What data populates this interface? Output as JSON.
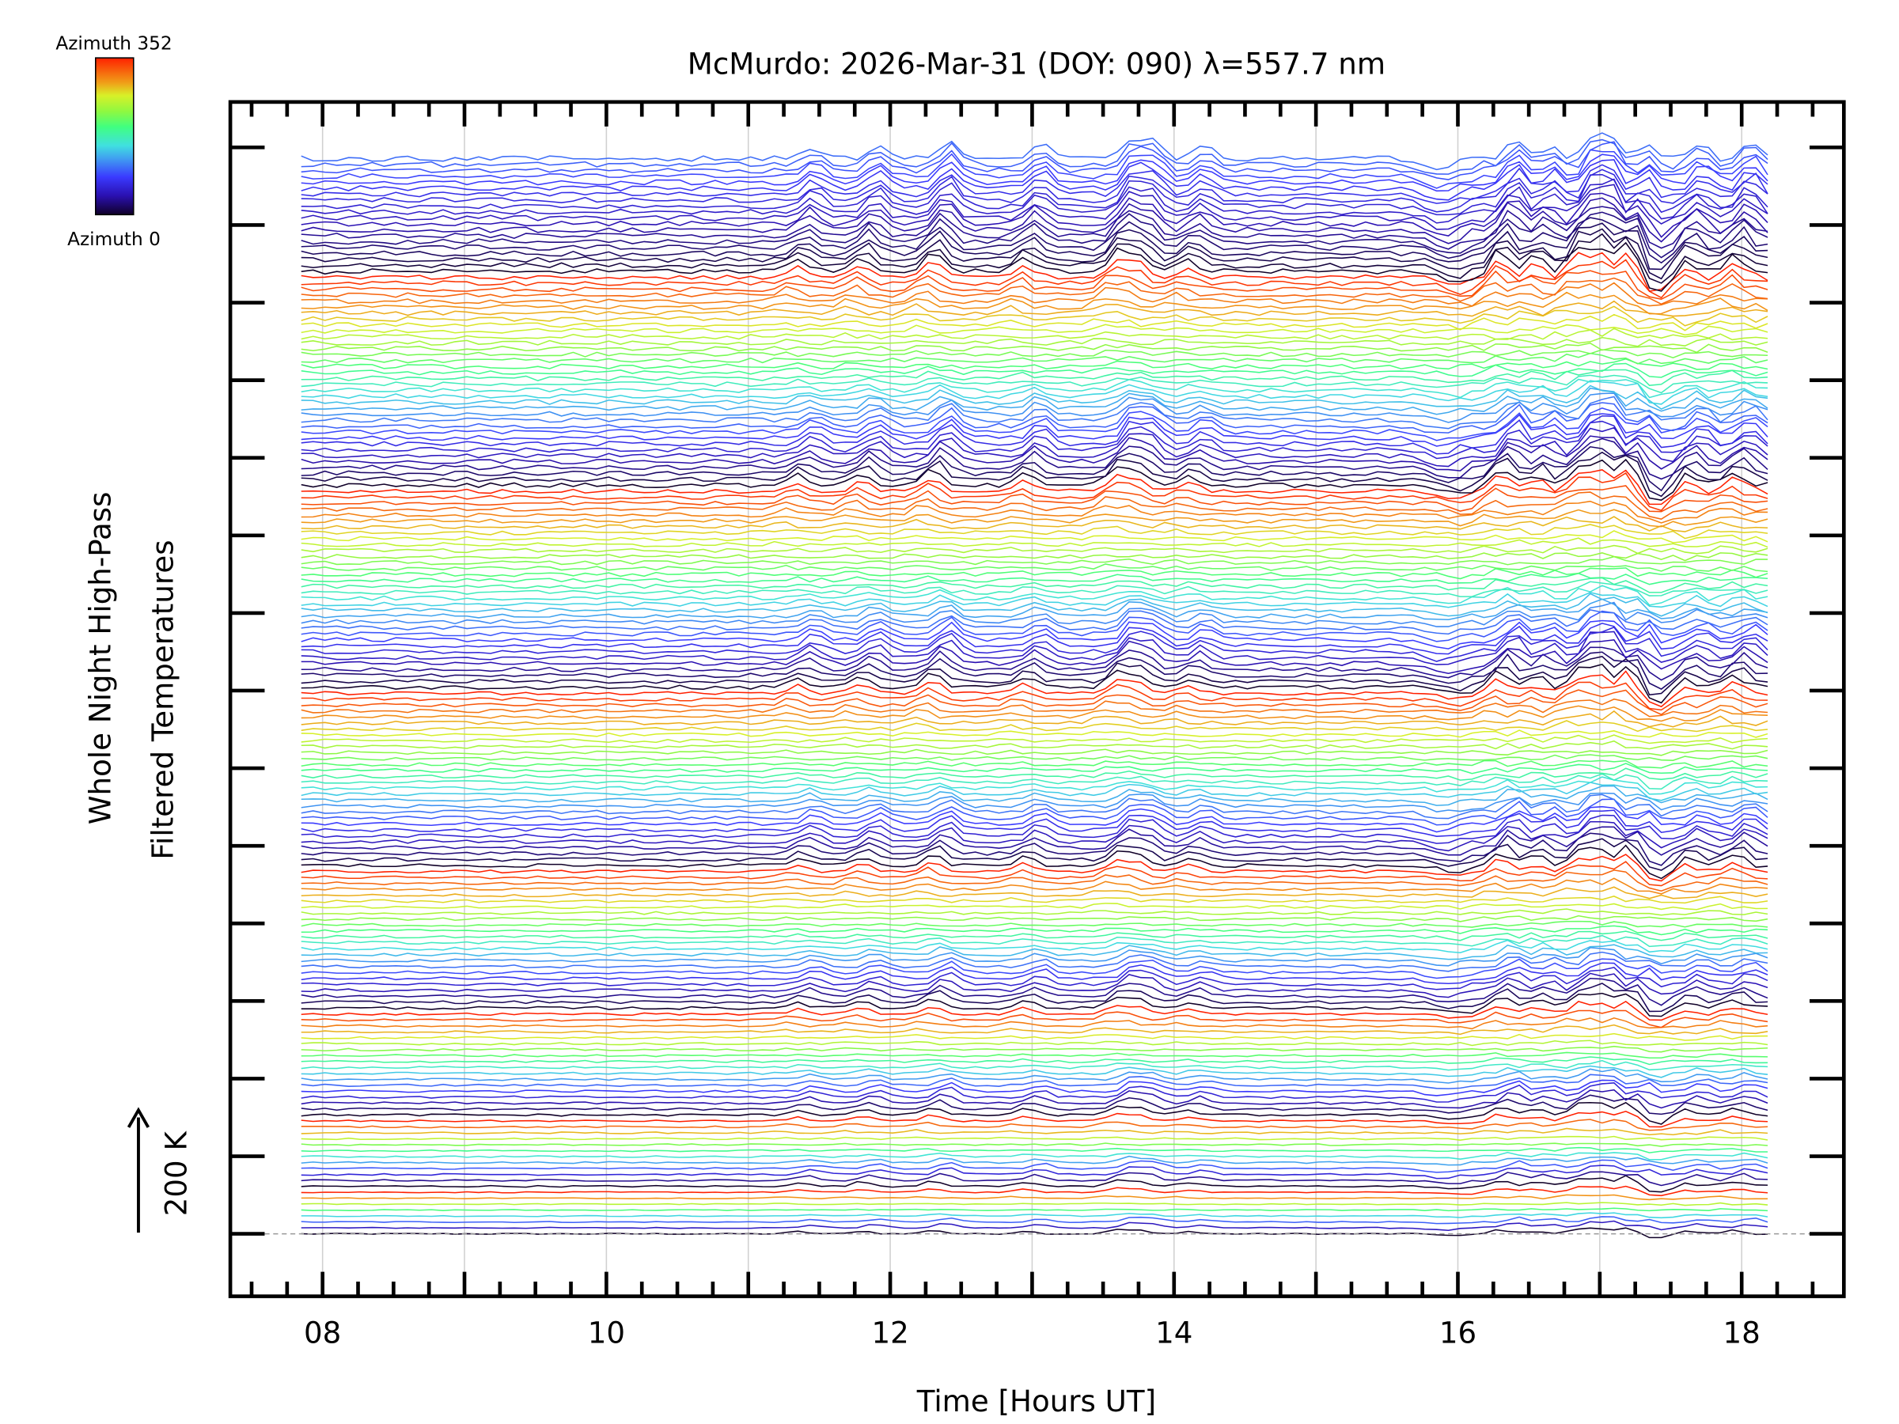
{
  "chart_data": {
    "type": "line",
    "title": "McMurdo: 2026-Mar-31 (DOY: 090) λ=557.7 nm",
    "xlabel": "Time [Hours UT]",
    "ylabel_line1": "Whole Night High-Pass",
    "ylabel_line2": "Filtered Temperatures",
    "scale_bar_label": "200 K",
    "colorbar": {
      "top_label": "Azimuth 352",
      "bottom_label": "Azimuth 0",
      "min": 0,
      "max": 352
    },
    "xlim": [
      7.35,
      18.72
    ],
    "xticks": [
      {
        "value": 8,
        "label": "08"
      },
      {
        "value": 10,
        "label": "10"
      },
      {
        "value": 12,
        "label": "12"
      },
      {
        "value": 14,
        "label": "14"
      },
      {
        "value": 16,
        "label": "16"
      },
      {
        "value": 18,
        "label": "18"
      }
    ],
    "data_time_range": [
      7.85,
      18.25
    ],
    "grid": "vertical lines each hour",
    "stacking": "traces vertically offset, grouped by elevation ring, colored by azimuth",
    "ring_trace_counts": [
      8,
      12,
      18,
      24,
      30,
      34,
      36,
      20
    ],
    "common_peaks_hours": [
      {
        "t": 11.35,
        "amp": 0.5
      },
      {
        "t": 11.8,
        "amp": 0.6
      },
      {
        "t": 12.3,
        "amp": 0.8
      },
      {
        "t": 12.95,
        "amp": 0.6
      },
      {
        "t": 13.6,
        "amp": 0.9
      },
      {
        "t": 13.75,
        "amp": 0.7
      },
      {
        "t": 14.1,
        "amp": 0.5
      },
      {
        "t": 16.3,
        "amp": 0.9
      },
      {
        "t": 16.55,
        "amp": 0.6
      },
      {
        "t": 16.85,
        "amp": 1.0
      },
      {
        "t": 17.0,
        "amp": 1.1
      },
      {
        "t": 17.2,
        "amp": 1.4
      },
      {
        "t": 17.6,
        "amp": 0.6
      },
      {
        "t": 17.95,
        "amp": 0.7
      }
    ],
    "dip_hours": [
      {
        "t": 16.0,
        "amp": -0.4
      },
      {
        "t": 17.4,
        "amp": -0.8
      }
    ]
  }
}
